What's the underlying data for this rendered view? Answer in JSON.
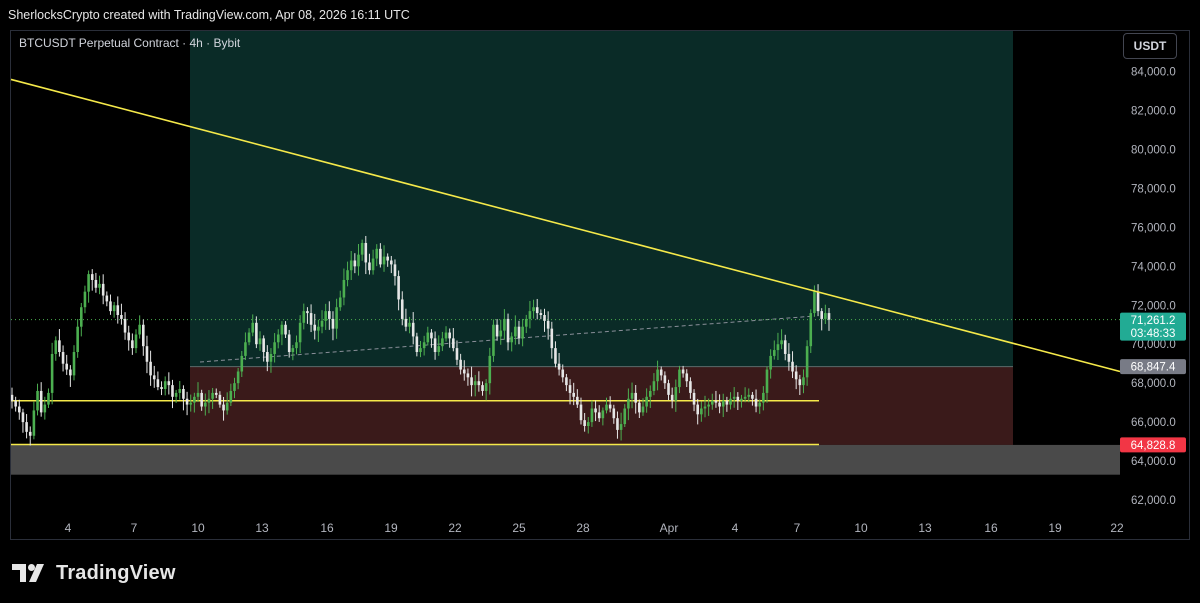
{
  "header": {
    "attribution": "SherlocksCrypto created with TradingView.com, Apr 08, 2026 16:11 UTC"
  },
  "symbol_info": "BTCUSDT Perpetual Contract · 4h · Bybit",
  "currency_button": "USDT",
  "logo_text": "TradingView",
  "colors": {
    "up": "#4caf50",
    "down": "#e6e6e6",
    "green_zone": "#0a2b27",
    "red_zone": "#3a1a1a",
    "gray_zone": "#4a4a4a",
    "trendline": "#f5e94a",
    "price_label_green": "#22ab94",
    "price_label_red": "#f23645",
    "price_label_gray": "#787b86"
  },
  "chart_data": {
    "type": "candlestick",
    "title": "",
    "timeframe": "4h",
    "y_axis": {
      "range": [
        62000,
        85000
      ],
      "ticks": [
        "62,000.0",
        "64,000.0",
        "66,000.0",
        "68,000.0",
        "70,000.0",
        "72,000.0",
        "74,000.0",
        "76,000.0",
        "78,000.0",
        "80,000.0",
        "82,000.0",
        "84,000.0"
      ]
    },
    "x_axis": {
      "ticks": [
        "4",
        "7",
        "10",
        "13",
        "16",
        "19",
        "22",
        "25",
        "28",
        "Apr",
        "4",
        "7",
        "10",
        "13",
        "16",
        "19",
        "22"
      ]
    },
    "price_labels": [
      {
        "value": "71,261.2",
        "sub": "03:48:33",
        "kind": "current"
      },
      {
        "value": "68,847.4",
        "kind": "gray"
      },
      {
        "value": "64,828.8",
        "kind": "red"
      }
    ],
    "zones": [
      {
        "kind": "take-profit",
        "price_from": 68847.4,
        "price_to": 85000
      },
      {
        "kind": "stop-loss",
        "price_from": 64828.8,
        "price_to": 68847.4
      },
      {
        "kind": "gray",
        "price_from": 63300,
        "price_to": 64828.8
      }
    ],
    "horizontal_lines": [
      67100,
      64850
    ],
    "trendline": {
      "from": 83600,
      "to": 68600
    },
    "current_price": 71261.2,
    "entry_price": 68847.4,
    "stop_price": 64828.8,
    "closes_4h": [
      67100,
      66800,
      66500,
      66000,
      65500,
      65300,
      66600,
      67600,
      66500,
      66900,
      67500,
      69500,
      70200,
      69600,
      69000,
      68700,
      68400,
      69600,
      70900,
      71900,
      72700,
      73600,
      73300,
      72900,
      73100,
      72500,
      72200,
      71700,
      72000,
      71500,
      71300,
      70600,
      70200,
      69800,
      70500,
      71000,
      69900,
      69100,
      68400,
      68200,
      67800,
      67700,
      68100,
      67900,
      67300,
      67500,
      67700,
      67200,
      66900,
      67000,
      67300,
      67500,
      66800,
      67000,
      67200,
      67500,
      67400,
      66900,
      66600,
      67000,
      67600,
      68000,
      68600,
      69400,
      70100,
      70600,
      71100,
      70000,
      70300,
      69600,
      69100,
      69500,
      70100,
      70500,
      71000,
      70500,
      69600,
      69800,
      70100,
      71100,
      71700,
      71600,
      71000,
      70700,
      70900,
      71200,
      71700,
      71300,
      70800,
      71900,
      72400,
      73300,
      73800,
      74300,
      74000,
      74600,
      75200,
      74200,
      73800,
      74400,
      74900,
      74100,
      74500,
      74300,
      74100,
      73500,
      72300,
      71300,
      70900,
      71100,
      70400,
      69600,
      69800,
      70100,
      70600,
      70300,
      69600,
      69900,
      70300,
      70600,
      70300,
      69800,
      69200,
      68700,
      68500,
      68300,
      67900,
      68100,
      67900,
      67600,
      68000,
      69400,
      71000,
      70400,
      70700,
      71300,
      70100,
      70400,
      70900,
      70300,
      70900,
      71300,
      71700,
      71900,
      71600,
      71500,
      71200,
      70800,
      69800,
      69000,
      68700,
      68300,
      67900,
      67500,
      67300,
      66900,
      66100,
      65800,
      66000,
      66700,
      66500,
      66200,
      66600,
      66900,
      66700,
      66200,
      65600,
      65900,
      66700,
      67200,
      67500,
      67000,
      66500,
      66800,
      67300,
      67600,
      68100,
      68700,
      68400,
      68000,
      67400,
      67100,
      67800,
      68700,
      68500,
      68100,
      67500,
      66900,
      66400,
      66700,
      66800,
      66900,
      67100,
      67000,
      66800,
      67100,
      66900,
      67200,
      67300,
      67100,
      67200,
      67300,
      67400,
      67200,
      66800,
      67000,
      67500,
      68700,
      69400,
      69700,
      70000,
      70200,
      69500,
      69100,
      68600,
      68200,
      67900,
      68300,
      69900,
      71600,
      72700,
      71700,
      71300,
      71600,
      71261.2
    ]
  }
}
